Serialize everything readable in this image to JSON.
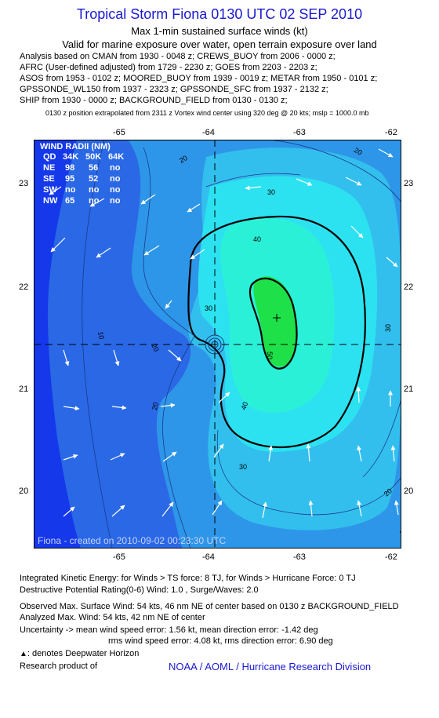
{
  "header": {
    "title": "Tropical Storm Fiona 0130 UTC 02 SEP 2010",
    "subtitle": "Max 1-min sustained surface winds (kt)",
    "validity": "Valid for marine exposure over water, open terrain exposure over land"
  },
  "analysis_lines": [
    "Analysis based on CMAN from 1930 - 0048 z; CREWS_BUOY from 2006 - 0000 z;",
    "AFRC (User-defined adjusted) from 1729 - 2230 z; GOES from 2203 - 2203 z;",
    "ASOS from 1953 - 0102 z; MOORED_BUOY from 1939 - 0019 z; METAR from 1950 - 0101 z;",
    "GPSSONDE_WL150 from 1937 - 2323 z; GPSSONDE_SFC from 1937 - 2132 z;",
    "SHIP from 1930 - 0000 z; BACKGROUND_FIELD from 0130 - 0130 z;"
  ],
  "extrapolation_note": "0130 z position extrapolated from 2311 z Vortex wind center using 320 deg @ 20 kts; mslp = 1000.0 mb",
  "map": {
    "lon_ticks": [
      "-65",
      "-64",
      "-63",
      "-62"
    ],
    "lat_ticks": [
      "23",
      "22",
      "21",
      "20"
    ],
    "extent": {
      "lon_min": -65.99,
      "lon_max": -61.99,
      "lat_min": 19.5,
      "lat_max": 23.5
    },
    "storm_center": {
      "lon": -64.0,
      "lat": 21.45
    },
    "max_wind_marker": {
      "lon": -63.25,
      "lat": 21.7
    },
    "contour_labels": [
      "10",
      "20",
      "20",
      "20",
      "30",
      "30",
      "30",
      "30",
      "40",
      "40",
      "50",
      "20",
      "20",
      "20"
    ],
    "wind_radii_box": {
      "title": "WIND RADII (NM)",
      "header": [
        "QD",
        "34K",
        "50K",
        "64K"
      ],
      "rows": [
        [
          "NE",
          "98",
          "56",
          "no"
        ],
        [
          "SE",
          "95",
          "52",
          "no"
        ],
        [
          "SW",
          "no",
          "no",
          "no"
        ],
        [
          "NW",
          "65",
          "no",
          "no"
        ]
      ]
    },
    "footer_credit": "Fiona - created on 2010-09-02 00:23:30 UTC",
    "colors": {
      "deep_blue": "#1030e8",
      "blue": "#2a6ae6",
      "mid_blue": "#2e9ee8",
      "light_blue": "#30c8f0",
      "cyan": "#2ee8f0",
      "aqua": "#28f0c0",
      "green": "#20e040"
    }
  },
  "bottom": {
    "ike": "Integrated Kinetic Energy:  for Winds > TS force: 8 TJ,  for Winds > Hurricane Force: 0 TJ",
    "dpr": "Destructive Potential Rating(0-6)   Wind: 1.0 , Surge/Waves: 2.0",
    "obs_max": "Observed Max. Surface Wind: 54 kts, 46 nm NE of center based on 0130 z BACKGROUND_FIELD",
    "analyzed_max": "Analyzed Max. Wind: 54 kts, 42 nm NE of center",
    "uncertainty1": "Uncertainty -> mean wind speed error: 1.56 kt,   mean direction error:  -1.42 deg",
    "uncertainty2": "rms wind speed error: 4.08 kt,   rms direction error: 6.90 deg",
    "deepwater": ": denotes Deepwater Horizon",
    "research": "Research product of",
    "credit": "NOAA / AOML / Hurricane Research Division"
  }
}
